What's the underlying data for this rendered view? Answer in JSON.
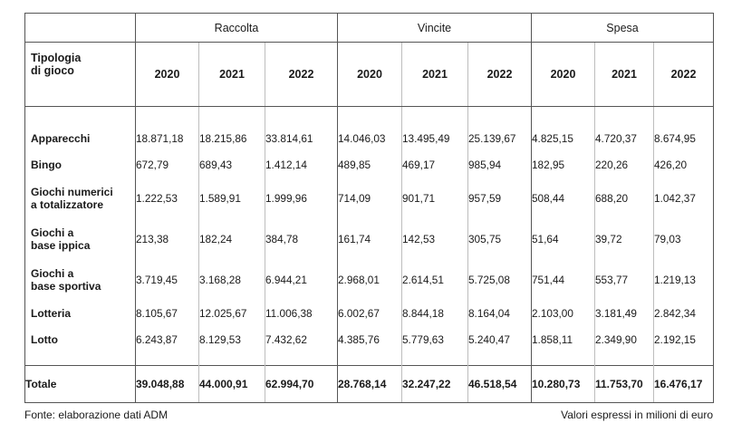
{
  "header": {
    "group_labels": [
      "Raccolta",
      "Vincite",
      "Spesa"
    ],
    "row_label": "Tipologia\ndi gioco",
    "years": [
      "2020",
      "2021",
      "2022"
    ]
  },
  "rows": [
    {
      "label": "Apparecchi",
      "values": [
        "18.871,18",
        "18.215,86",
        "33.814,61",
        "14.046,03",
        "13.495,49",
        "25.139,67",
        "4.825,15",
        "4.720,37",
        "8.674,95"
      ]
    },
    {
      "label": "Bingo",
      "values": [
        "672,79",
        "689,43",
        "1.412,14",
        "489,85",
        "469,17",
        "985,94",
        "182,95",
        "220,26",
        "426,20"
      ]
    },
    {
      "label": "Giochi numerici\na totalizzatore",
      "values": [
        "1.222,53",
        "1.589,91",
        "1.999,96",
        "714,09",
        "901,71",
        "957,59",
        "508,44",
        "688,20",
        "1.042,37"
      ]
    },
    {
      "label": "Giochi a\nbase ippica",
      "values": [
        "213,38",
        "182,24",
        "384,78",
        "161,74",
        "142,53",
        "305,75",
        "51,64",
        "39,72",
        "79,03"
      ]
    },
    {
      "label": "Giochi a\nbase sportiva",
      "values": [
        "3.719,45",
        "3.168,28",
        "6.944,21",
        "2.968,01",
        "2.614,51",
        "5.725,08",
        "751,44",
        "553,77",
        "1.219,13"
      ]
    },
    {
      "label": "Lotteria",
      "values": [
        "8.105,67",
        "12.025,67",
        "11.006,38",
        "6.002,67",
        "8.844,18",
        "8.164,04",
        "2.103,00",
        "3.181,49",
        "2.842,34"
      ]
    },
    {
      "label": "Lotto",
      "values": [
        "6.243,87",
        "8.129,53",
        "7.432,62",
        "4.385,76",
        "5.779,63",
        "5.240,47",
        "1.858,11",
        "2.349,90",
        "2.192,15"
      ]
    }
  ],
  "total": {
    "label": "Totale",
    "values": [
      "39.048,88",
      "44.000,91",
      "62.994,70",
      "28.768,14",
      "32.247,22",
      "46.518,54",
      "10.280,73",
      "11.753,70",
      "16.476,17"
    ]
  },
  "footer": {
    "source": "Fonte: elaborazione dati ADM",
    "unit": "Valori espressi in milioni di euro"
  }
}
